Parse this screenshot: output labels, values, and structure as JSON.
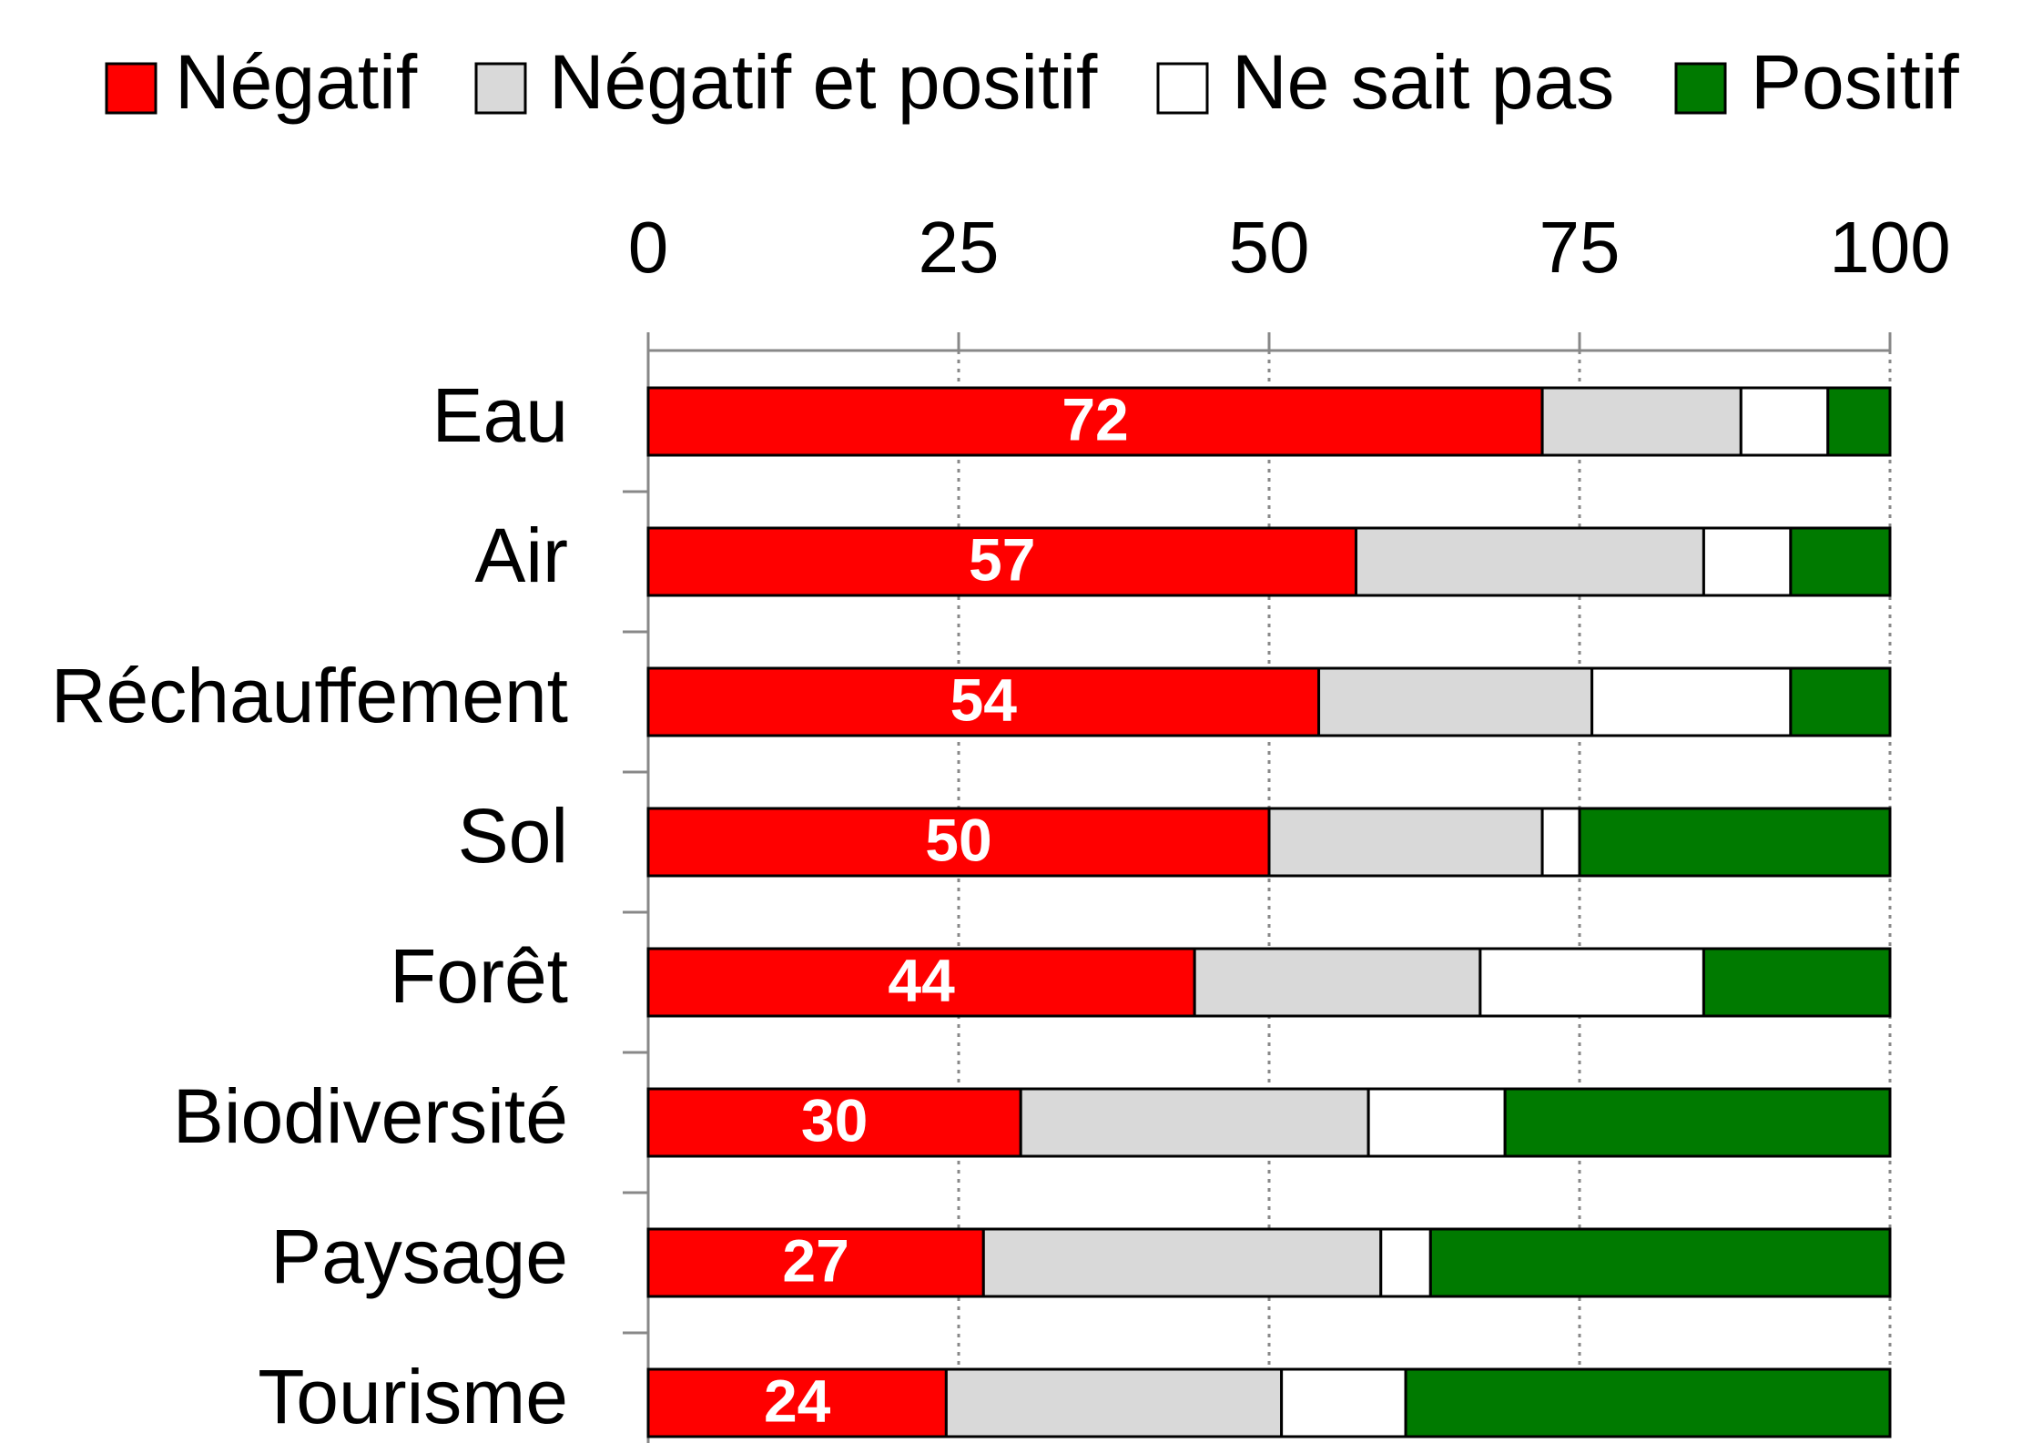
{
  "chart_data": {
    "type": "stacked_barh",
    "categories": [
      "Eau",
      "Air",
      "Réchauffement",
      "Sol",
      "Forêt",
      "Biodiversité",
      "Paysage",
      "Tourisme"
    ],
    "series": [
      {
        "name": "Négatif",
        "color": "#ff0000",
        "values": [
          72,
          57,
          54,
          50,
          44,
          30,
          27,
          24
        ]
      },
      {
        "name": "Négatif et positif",
        "color": "#d9d9d9",
        "values": [
          16,
          28,
          22,
          22,
          23,
          28,
          32,
          27
        ]
      },
      {
        "name": "Ne sait pas",
        "color": "#ffffff",
        "values": [
          7,
          7,
          16,
          3,
          18,
          11,
          4,
          10
        ]
      },
      {
        "name": "Positif",
        "color": "#007a00",
        "values": [
          5,
          8,
          8,
          25,
          15,
          31,
          37,
          39
        ]
      }
    ],
    "xlim": [
      0,
      100
    ],
    "xticks": [
      0,
      25,
      50,
      75,
      100
    ],
    "grid": true,
    "legend": "top",
    "data_labels_series": 0
  }
}
